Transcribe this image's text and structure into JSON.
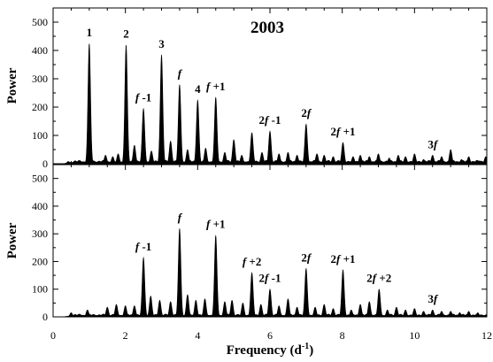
{
  "chart_data": [
    {
      "type": "area",
      "panel": "top",
      "title": "2003",
      "xlabel": "",
      "ylabel": "Power",
      "xlim": [
        0,
        12
      ],
      "ylim": [
        0,
        550
      ],
      "yticks": [
        "0",
        "100",
        "200",
        "300",
        "400",
        "500"
      ],
      "grid": false,
      "noise_level": 12,
      "peaks": [
        {
          "x": 0.42,
          "y": 8
        },
        {
          "x": 1.0,
          "y": 425
        },
        {
          "x": 1.45,
          "y": 30
        },
        {
          "x": 1.65,
          "y": 25
        },
        {
          "x": 1.8,
          "y": 35
        },
        {
          "x": 2.02,
          "y": 420
        },
        {
          "x": 2.25,
          "y": 65
        },
        {
          "x": 2.5,
          "y": 195
        },
        {
          "x": 2.72,
          "y": 45
        },
        {
          "x": 3.0,
          "y": 385
        },
        {
          "x": 3.25,
          "y": 80
        },
        {
          "x": 3.5,
          "y": 280
        },
        {
          "x": 3.72,
          "y": 50
        },
        {
          "x": 4.0,
          "y": 225
        },
        {
          "x": 4.22,
          "y": 55
        },
        {
          "x": 4.5,
          "y": 235
        },
        {
          "x": 4.75,
          "y": 40
        },
        {
          "x": 5.0,
          "y": 85
        },
        {
          "x": 5.22,
          "y": 30
        },
        {
          "x": 5.5,
          "y": 110
        },
        {
          "x": 5.78,
          "y": 40
        },
        {
          "x": 6.0,
          "y": 115
        },
        {
          "x": 6.25,
          "y": 35
        },
        {
          "x": 6.5,
          "y": 40
        },
        {
          "x": 6.75,
          "y": 30
        },
        {
          "x": 7.0,
          "y": 140
        },
        {
          "x": 7.3,
          "y": 35
        },
        {
          "x": 7.5,
          "y": 30
        },
        {
          "x": 7.75,
          "y": 25
        },
        {
          "x": 8.02,
          "y": 75
        },
        {
          "x": 8.3,
          "y": 25
        },
        {
          "x": 8.5,
          "y": 30
        },
        {
          "x": 8.75,
          "y": 25
        },
        {
          "x": 9.0,
          "y": 35
        },
        {
          "x": 9.3,
          "y": 20
        },
        {
          "x": 9.55,
          "y": 30
        },
        {
          "x": 9.75,
          "y": 25
        },
        {
          "x": 10.0,
          "y": 35
        },
        {
          "x": 10.25,
          "y": 15
        },
        {
          "x": 10.5,
          "y": 30
        },
        {
          "x": 10.75,
          "y": 25
        },
        {
          "x": 11.0,
          "y": 50
        },
        {
          "x": 11.3,
          "y": 15
        },
        {
          "x": 11.5,
          "y": 25
        },
        {
          "x": 11.8,
          "y": 10
        },
        {
          "x": 11.97,
          "y": 25
        }
      ],
      "annotations": [
        {
          "base": "1",
          "sup": "",
          "x": 1.0,
          "y": 425
        },
        {
          "base": "2",
          "sup": "",
          "x": 2.02,
          "y": 420
        },
        {
          "base": "3",
          "sup": "",
          "x": 3.0,
          "y": 385
        },
        {
          "base": "f",
          "sup": "",
          "x": 3.5,
          "y": 280
        },
        {
          "base": "4",
          "sup": "",
          "x": 4.0,
          "y": 225
        },
        {
          "base": "f",
          "sup": "+1",
          "x": 4.5,
          "y": 235
        },
        {
          "base": "f",
          "sup": "-1",
          "x": 2.5,
          "y": 195
        },
        {
          "base": "2f",
          "sup": "-1",
          "x": 6.0,
          "y": 115
        },
        {
          "base": "2f",
          "sup": "",
          "x": 7.0,
          "y": 140
        },
        {
          "base": "2f",
          "sup": "+1",
          "x": 8.02,
          "y": 75
        },
        {
          "base": "3f",
          "sup": "",
          "x": 10.5,
          "y": 30
        }
      ]
    },
    {
      "type": "area",
      "panel": "bottom",
      "title": "",
      "xlabel": "Frequency (d-1)",
      "ylabel": "Power",
      "xlim": [
        0,
        12
      ],
      "ylim": [
        0,
        550
      ],
      "xticks": [
        "0",
        "2",
        "4",
        "6",
        "8",
        "10",
        "12"
      ],
      "yticks": [
        "0",
        "100",
        "200",
        "300",
        "400",
        "500"
      ],
      "grid": false,
      "noise_level": 10,
      "peaks": [
        {
          "x": 0.5,
          "y": 15
        },
        {
          "x": 0.95,
          "y": 25
        },
        {
          "x": 1.5,
          "y": 35
        },
        {
          "x": 1.75,
          "y": 45
        },
        {
          "x": 2.0,
          "y": 40
        },
        {
          "x": 2.25,
          "y": 40
        },
        {
          "x": 2.5,
          "y": 215
        },
        {
          "x": 2.7,
          "y": 75
        },
        {
          "x": 2.95,
          "y": 60
        },
        {
          "x": 3.25,
          "y": 55
        },
        {
          "x": 3.5,
          "y": 320
        },
        {
          "x": 3.72,
          "y": 80
        },
        {
          "x": 3.95,
          "y": 60
        },
        {
          "x": 4.2,
          "y": 65
        },
        {
          "x": 4.5,
          "y": 295
        },
        {
          "x": 4.75,
          "y": 55
        },
        {
          "x": 4.95,
          "y": 60
        },
        {
          "x": 5.25,
          "y": 50
        },
        {
          "x": 5.5,
          "y": 160
        },
        {
          "x": 5.75,
          "y": 45
        },
        {
          "x": 6.0,
          "y": 100
        },
        {
          "x": 6.25,
          "y": 40
        },
        {
          "x": 6.5,
          "y": 65
        },
        {
          "x": 6.75,
          "y": 35
        },
        {
          "x": 7.0,
          "y": 175
        },
        {
          "x": 7.25,
          "y": 35
        },
        {
          "x": 7.5,
          "y": 45
        },
        {
          "x": 7.75,
          "y": 30
        },
        {
          "x": 8.02,
          "y": 170
        },
        {
          "x": 8.25,
          "y": 25
        },
        {
          "x": 8.5,
          "y": 45
        },
        {
          "x": 8.75,
          "y": 55
        },
        {
          "x": 9.02,
          "y": 100
        },
        {
          "x": 9.25,
          "y": 25
        },
        {
          "x": 9.5,
          "y": 35
        },
        {
          "x": 9.75,
          "y": 25
        },
        {
          "x": 10.0,
          "y": 30
        },
        {
          "x": 10.25,
          "y": 20
        },
        {
          "x": 10.5,
          "y": 25
        },
        {
          "x": 10.75,
          "y": 20
        },
        {
          "x": 11.0,
          "y": 20
        },
        {
          "x": 11.25,
          "y": 15
        },
        {
          "x": 11.5,
          "y": 20
        },
        {
          "x": 11.75,
          "y": 15
        }
      ],
      "annotations": [
        {
          "base": "f",
          "sup": "-1",
          "x": 2.5,
          "y": 215
        },
        {
          "base": "f",
          "sup": "",
          "x": 3.5,
          "y": 320
        },
        {
          "base": "f",
          "sup": "+1",
          "x": 4.5,
          "y": 295
        },
        {
          "base": "f",
          "sup": "+2",
          "x": 5.5,
          "y": 160
        },
        {
          "base": "2f",
          "sup": "-1",
          "x": 6.0,
          "y": 100
        },
        {
          "base": "2f",
          "sup": "",
          "x": 7.0,
          "y": 175
        },
        {
          "base": "2f",
          "sup": "+1",
          "x": 8.02,
          "y": 170
        },
        {
          "base": "2f",
          "sup": "+2",
          "x": 9.02,
          "y": 100
        },
        {
          "base": "3f",
          "sup": "",
          "x": 10.5,
          "y": 25
        }
      ]
    }
  ],
  "axes": {
    "xlabel_main": "Frequency (d",
    "xlabel_sup": "-1",
    "xlabel_close": ")"
  }
}
